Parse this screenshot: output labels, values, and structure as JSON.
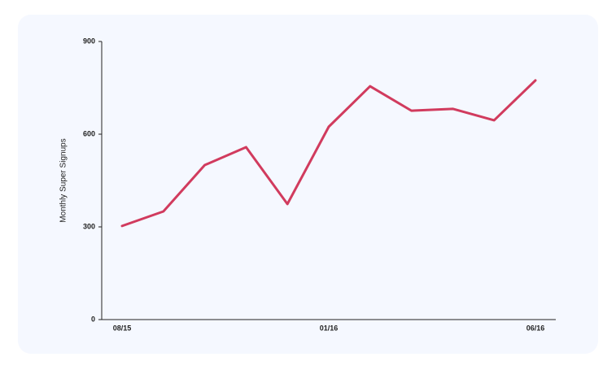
{
  "chart_data": {
    "type": "line",
    "y_label": "Monthly Super Signups",
    "categories": [
      "08/15",
      null,
      null,
      null,
      null,
      "01/16",
      null,
      null,
      null,
      null,
      "06/16"
    ],
    "series": [
      {
        "name": "Monthly Super Signups",
        "color": "#d13b5e",
        "values": [
          303,
          350,
          500,
          558,
          374,
          624,
          755,
          676,
          682,
          645,
          774
        ]
      }
    ],
    "ylim": [
      0,
      900
    ],
    "yticks": [
      0,
      300,
      600,
      900
    ]
  }
}
